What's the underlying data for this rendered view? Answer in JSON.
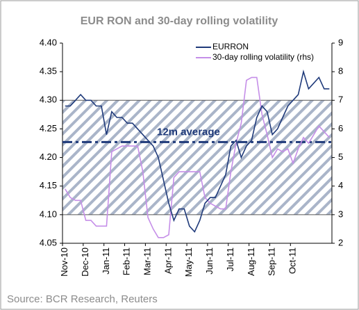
{
  "chart_data": {
    "type": "line",
    "title": "EUR RON and 30-day rolling volatility",
    "source": "Source: BCR Research, Reuters",
    "categories": [
      "Nov-10",
      null,
      null,
      null,
      "Dec-10",
      null,
      null,
      null,
      "Jan-11",
      null,
      null,
      null,
      "Feb-11",
      null,
      null,
      null,
      "Mar-11",
      null,
      null,
      null,
      "Apr-11",
      null,
      null,
      null,
      "May-11",
      null,
      null,
      null,
      "Jun-11",
      null,
      null,
      null,
      "Jul-11",
      null,
      null,
      null,
      "Aug-11",
      null,
      null,
      null,
      "Sep-11",
      null,
      null,
      null,
      "Oct-11",
      null,
      null,
      null,
      null,
      null,
      null,
      null
    ],
    "series": [
      {
        "name": "EURRON",
        "color": "#1f3a7a",
        "axis": "y",
        "values": [
          4.29,
          4.29,
          4.3,
          4.31,
          4.3,
          4.3,
          4.29,
          4.29,
          4.24,
          4.28,
          4.27,
          4.27,
          4.26,
          4.26,
          4.25,
          4.24,
          4.23,
          4.22,
          4.2,
          4.16,
          4.12,
          4.09,
          4.11,
          4.11,
          4.08,
          4.07,
          4.09,
          4.12,
          4.13,
          4.13,
          4.15,
          4.17,
          4.22,
          4.23,
          4.2,
          4.22,
          4.23,
          4.27,
          4.29,
          4.28,
          4.24,
          4.25,
          4.27,
          4.29,
          4.3,
          4.31,
          4.35,
          4.32,
          4.33,
          4.34,
          4.32,
          4.32
        ]
      },
      {
        "name": "30-day rolling volatility (rhs)",
        "color": "#c58ee8",
        "axis": "y2",
        "values": [
          3.9,
          3.6,
          3.5,
          3.5,
          2.8,
          2.8,
          2.6,
          2.6,
          2.6,
          5.2,
          5.3,
          5.4,
          5.4,
          5.4,
          5.4,
          4.5,
          2.9,
          2.5,
          2.2,
          2.2,
          2.3,
          4.3,
          4.5,
          4.5,
          4.5,
          4.5,
          4.5,
          3.6,
          3.4,
          3.3,
          3.2,
          3.2,
          4.5,
          5.5,
          6.2,
          7.7,
          7.8,
          7.8,
          6.5,
          5.8,
          5.0,
          5.3,
          5.2,
          5.3,
          4.8,
          5.3,
          5.7,
          5.5,
          5.8,
          6.1,
          5.9,
          5.7
        ]
      }
    ],
    "ylim": [
      4.05,
      4.4
    ],
    "yticks": [
      4.05,
      {
        "value": 4.1,
        "label": "4.10"
      },
      4.15,
      {
        "value": 4.2,
        "label": "4.20"
      },
      4.25,
      {
        "value": 4.3,
        "label": "4.30"
      },
      4.35,
      {
        "value": 4.4,
        "label": "4.40"
      }
    ],
    "y2lim": [
      2,
      9
    ],
    "y2ticks": [
      2,
      3,
      4,
      5,
      6,
      7,
      8,
      9
    ],
    "shaded_range": [
      4.1,
      4.3
    ],
    "average": {
      "value": 4.227,
      "label": "12m average"
    },
    "legend": "top-right"
  }
}
